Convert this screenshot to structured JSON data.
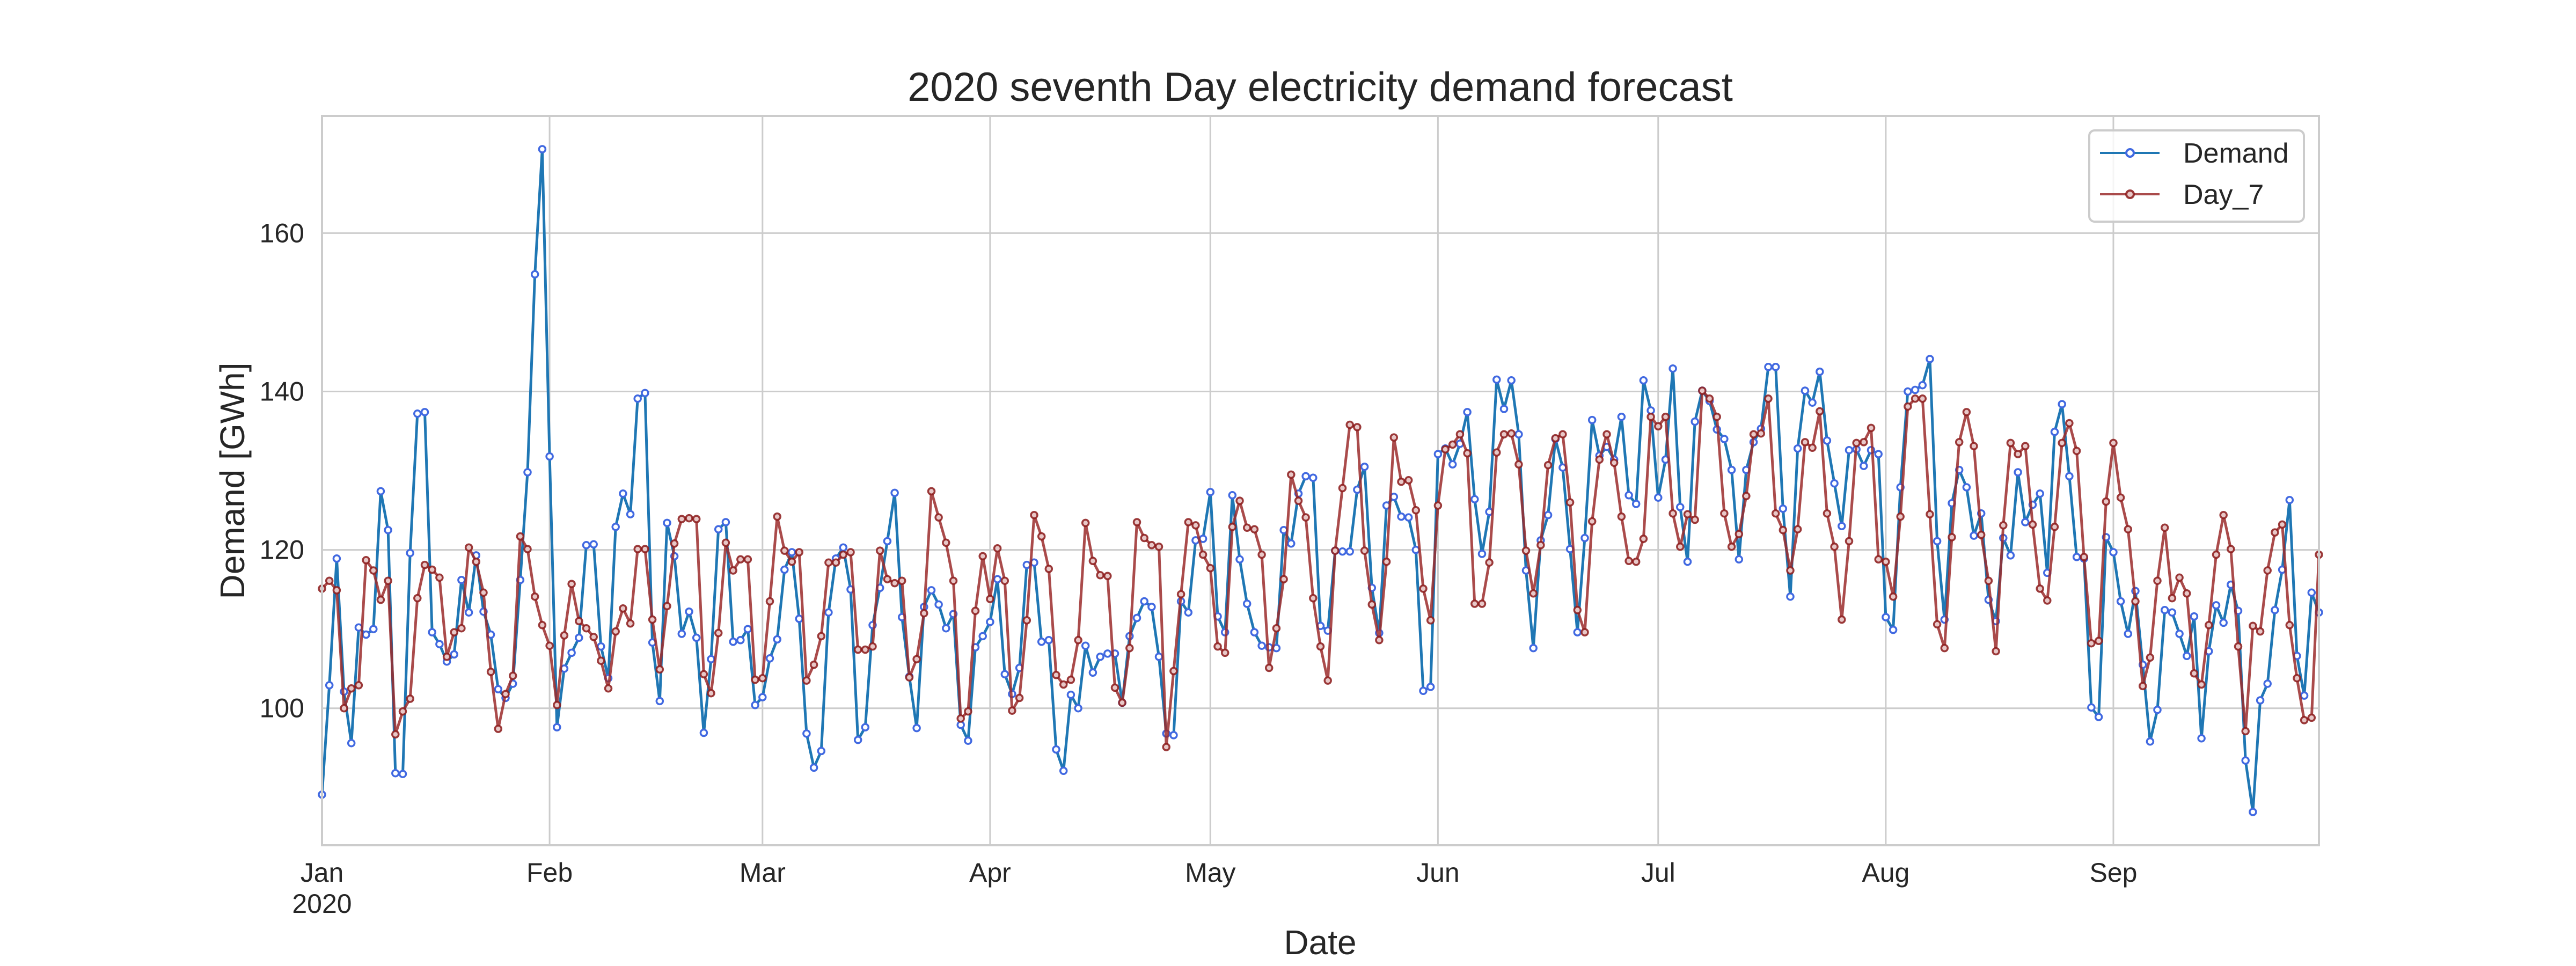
{
  "chart_data": {
    "type": "line",
    "title": "2020 seventh Day electricity demand forecast",
    "xlabel": "Date",
    "ylabel": "Demand [GWh]",
    "x_start": "2020-01-01",
    "x_step": "1 day",
    "x_range_days": [
      0,
      272
    ],
    "ylim": [
      82.7,
      174.8
    ],
    "yticks": [
      100,
      120,
      140,
      160
    ],
    "ytick_labels": [
      "100",
      "120",
      "140",
      "160"
    ],
    "xticks_day_index": [
      0,
      31,
      60,
      91,
      121,
      152,
      182,
      213,
      244
    ],
    "xtick_labels": [
      "Jan\n2020",
      "Feb",
      "Mar",
      "Apr",
      "May",
      "Jun",
      "Jul",
      "Aug",
      "Sep"
    ],
    "grid": true,
    "legend_position": "top-right",
    "series": [
      {
        "name": "Demand",
        "line_color": "#1f77b4",
        "marker_edge_color": "#4169e1",
        "marker_face_color": "#ffffff",
        "values": [
          89.1,
          102.9,
          118.9,
          102.1,
          95.6,
          110.2,
          109.3,
          110.0,
          127.4,
          122.5,
          91.8,
          91.7,
          119.6,
          137.2,
          137.4,
          109.6,
          108.1,
          105.9,
          106.8,
          116.2,
          112.1,
          119.3,
          112.2,
          109.3,
          102.4,
          101.3,
          103.1,
          116.2,
          129.8,
          154.8,
          170.6,
          131.8,
          97.6,
          105.0,
          107.0,
          108.9,
          120.6,
          120.7,
          107.8,
          103.8,
          122.9,
          127.1,
          124.5,
          139.1,
          139.8,
          108.3,
          100.9,
          123.4,
          119.2,
          109.4,
          112.2,
          108.9,
          96.9,
          106.2,
          122.6,
          123.5,
          108.4,
          108.6,
          110.0,
          100.4,
          101.4,
          106.3,
          108.7,
          117.5,
          119.7,
          111.3,
          96.8,
          92.5,
          94.6,
          112.1,
          118.9,
          120.3,
          115.0,
          96.0,
          97.6,
          110.5,
          115.2,
          121.1,
          127.2,
          111.5,
          104.0,
          97.5,
          112.8,
          114.9,
          113.1,
          110.1,
          111.9,
          97.9,
          95.9,
          107.7,
          109.1,
          110.9,
          116.3,
          104.3,
          101.8,
          105.1,
          118.1,
          118.4,
          108.4,
          108.6,
          94.8,
          92.1,
          101.7,
          100.0,
          107.9,
          104.5,
          106.5,
          106.9,
          106.9,
          100.7,
          109.1,
          111.4,
          113.5,
          112.8,
          106.5,
          96.8,
          96.6,
          113.5,
          112.1,
          121.2,
          121.4,
          127.3,
          111.6,
          109.6,
          126.9,
          118.8,
          113.2,
          109.6,
          107.9,
          107.7,
          107.6,
          122.5,
          120.8,
          127.1,
          129.3,
          129.1,
          110.4,
          109.8,
          119.9,
          119.8,
          119.8,
          127.6,
          130.5,
          115.2,
          109.5,
          125.6,
          126.7,
          124.2,
          124.1,
          120.0,
          102.2,
          102.7,
          132.1,
          132.8,
          130.8,
          133.4,
          137.4,
          126.4,
          119.5,
          124.8,
          141.5,
          137.8,
          141.4,
          134.6,
          117.4,
          107.6,
          121.2,
          124.4,
          134.0,
          130.4,
          120.1,
          109.6,
          121.5,
          136.4,
          131.9,
          133.0,
          131.4,
          136.8,
          126.9,
          125.8,
          141.4,
          137.6,
          126.6,
          131.4,
          142.9,
          125.4,
          118.5,
          136.2,
          140.1,
          138.8,
          135.2,
          134.0,
          130.1,
          118.8,
          130.1,
          133.6,
          135.3,
          143.1,
          143.1,
          125.2,
          114.1,
          132.8,
          140.1,
          138.6,
          142.5,
          133.8,
          128.4,
          123.0,
          132.6,
          132.7,
          130.6,
          132.6,
          132.1,
          111.5,
          109.9,
          127.9,
          140.0,
          140.2,
          140.8,
          144.1,
          121.1,
          111.2,
          125.9,
          130.1,
          127.9,
          121.8,
          124.6,
          113.7,
          111.0,
          121.5,
          119.3,
          129.8,
          123.5,
          125.7,
          127.1,
          117.1,
          134.9,
          138.4,
          129.3,
          119.1,
          118.9,
          100.1,
          98.9,
          121.6,
          119.7,
          113.5,
          109.4,
          114.8,
          105.5,
          95.8,
          99.8,
          112.4,
          112.1,
          109.4,
          106.6,
          111.6,
          96.2,
          107.2,
          113.0,
          110.8,
          115.6,
          112.3,
          93.4,
          86.9,
          101.0,
          103.1,
          112.4,
          117.5,
          126.3,
          106.6,
          101.6,
          114.6,
          112.1
        ]
      },
      {
        "name": "Day_7",
        "line_color": "#9b2c2c",
        "marker_edge_color": "#8b1a1a",
        "marker_face_color": "#e8c8c8",
        "values": [
          115.1,
          116.1,
          114.9,
          100.0,
          102.5,
          102.9,
          118.7,
          117.4,
          113.7,
          116.1,
          96.7,
          99.6,
          101.2,
          113.9,
          118.1,
          117.5,
          116.5,
          106.5,
          109.6,
          110.1,
          120.3,
          118.5,
          114.6,
          104.6,
          97.4,
          101.8,
          104.1,
          121.7,
          120.1,
          114.1,
          110.5,
          107.9,
          100.4,
          109.2,
          115.7,
          111.0,
          110.1,
          109.0,
          106.0,
          102.5,
          109.7,
          112.6,
          110.7,
          120.1,
          120.1,
          111.2,
          104.9,
          112.9,
          120.8,
          123.9,
          124.0,
          123.9,
          104.3,
          101.9,
          109.5,
          120.9,
          117.4,
          118.8,
          118.8,
          103.6,
          103.8,
          113.5,
          124.2,
          119.9,
          118.5,
          119.7,
          103.5,
          105.5,
          109.1,
          118.4,
          118.4,
          119.4,
          119.7,
          107.4,
          107.4,
          107.8,
          119.9,
          116.3,
          115.8,
          116.1,
          103.9,
          106.2,
          112.0,
          127.4,
          124.1,
          120.9,
          116.1,
          98.7,
          99.6,
          112.3,
          119.2,
          113.8,
          120.2,
          116.1,
          99.7,
          101.3,
          111.1,
          124.4,
          121.7,
          117.6,
          104.2,
          103.0,
          103.6,
          108.6,
          123.4,
          118.6,
          116.8,
          116.7,
          102.6,
          100.7,
          107.6,
          123.5,
          121.5,
          120.6,
          120.4,
          95.1,
          104.7,
          114.4,
          123.5,
          123.1,
          119.4,
          117.7,
          107.8,
          107.0,
          122.9,
          126.2,
          122.8,
          122.6,
          119.4,
          105.1,
          110.1,
          116.3,
          129.5,
          126.2,
          124.1,
          113.9,
          107.8,
          103.5,
          119.9,
          127.8,
          135.8,
          135.5,
          119.9,
          113.1,
          108.6,
          118.5,
          134.2,
          128.6,
          128.8,
          125.0,
          115.1,
          111.1,
          125.6,
          132.7,
          133.3,
          134.6,
          132.2,
          113.2,
          113.2,
          118.4,
          132.3,
          134.6,
          134.7,
          130.8,
          119.9,
          114.5,
          120.6,
          130.7,
          134.1,
          134.6,
          126.0,
          112.4,
          109.6,
          123.6,
          131.4,
          134.6,
          131.0,
          124.2,
          118.6,
          118.5,
          121.4,
          136.8,
          135.6,
          136.8,
          124.6,
          120.4,
          124.5,
          123.8,
          140.1,
          139.1,
          136.8,
          124.6,
          120.4,
          122.0,
          126.8,
          134.6,
          134.7,
          139.1,
          124.6,
          122.5,
          117.4,
          122.6,
          133.6,
          132.9,
          137.5,
          124.6,
          120.4,
          111.2,
          121.1,
          133.5,
          133.6,
          135.4,
          118.8,
          118.5,
          114.1,
          124.2,
          138.1,
          139.1,
          139.1,
          124.5,
          110.6,
          107.6,
          121.6,
          133.6,
          137.4,
          133.1,
          121.9,
          116.1,
          107.2,
          123.1,
          133.5,
          132.1,
          133.1,
          123.2,
          115.1,
          113.6,
          122.9,
          133.5,
          136.0,
          132.5,
          119.1,
          108.2,
          108.5,
          126.1,
          133.5,
          126.6,
          122.6,
          113.5,
          102.8,
          106.4,
          116.1,
          122.8,
          113.9,
          116.5,
          114.5,
          104.4,
          103.0,
          110.5,
          119.4,
          124.4,
          120.1,
          107.8,
          97.1,
          110.4,
          109.7,
          117.4,
          122.2,
          123.2,
          110.5,
          103.8,
          98.5,
          98.8,
          119.4
        ]
      }
    ]
  }
}
